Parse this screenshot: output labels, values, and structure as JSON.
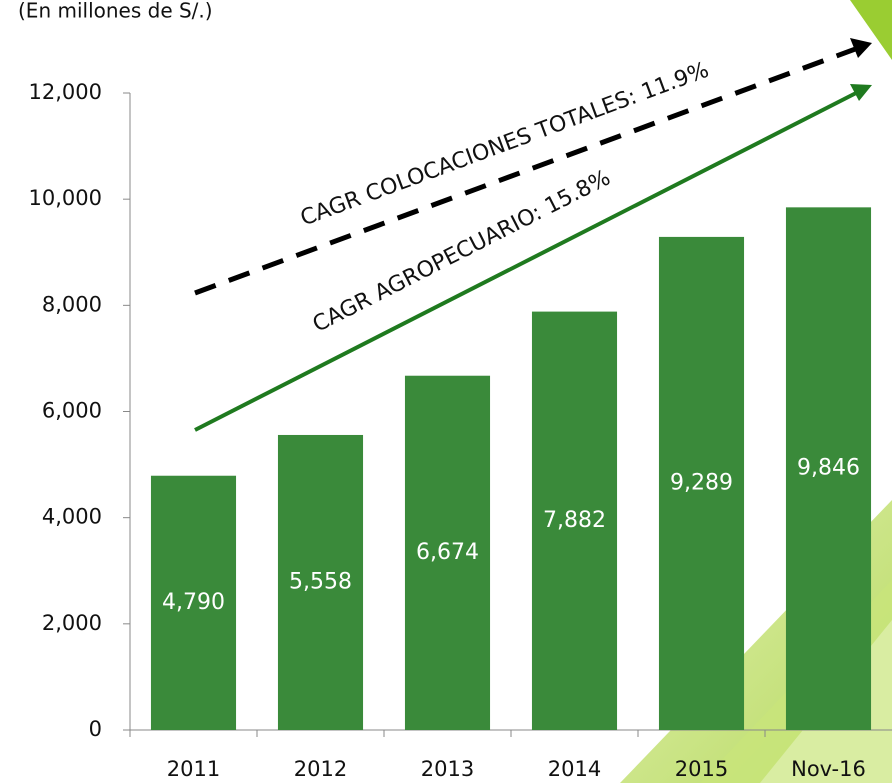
{
  "chart_data": {
    "type": "bar",
    "subtitle": "(En millones de S/.)",
    "categories": [
      "2011",
      "2012",
      "2013",
      "2014",
      "2015",
      "Nov-16"
    ],
    "values": [
      4790,
      5558,
      6674,
      7882,
      9289,
      9846
    ],
    "value_labels": [
      "4,790",
      "5,558",
      "6,674",
      "7,882",
      "9,289",
      "9,846"
    ],
    "color": "#3a8a3a",
    "ylim": [
      0,
      12000
    ],
    "yticks": [
      0,
      {
        "value": 2000,
        "label": "2,000"
      },
      {
        "value": 4000,
        "label": "4,000"
      },
      {
        "value": 6000,
        "label": "6,000"
      },
      {
        "value": 8000,
        "label": "8,000"
      },
      {
        "value": 10000,
        "label": "10,000"
      },
      {
        "value": 12000,
        "label": "12,000"
      }
    ],
    "grid": false,
    "annotations": [
      "CAGR COLOCACIONES TOTALES: 11.9%",
      "CAGR  AGROPECUARIO: 15.8%"
    ]
  }
}
